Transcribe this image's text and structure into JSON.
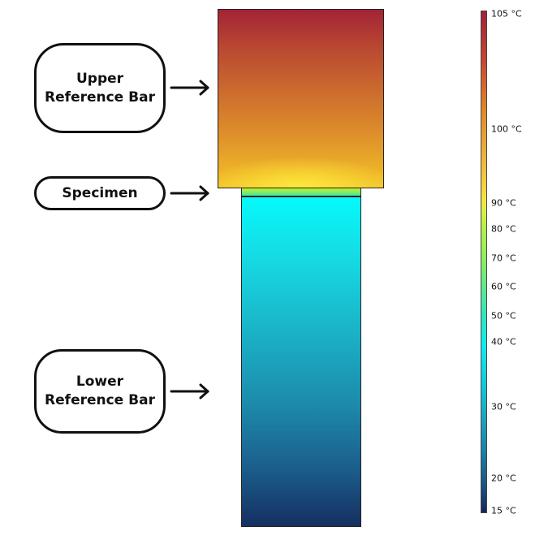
{
  "labels": {
    "upper": "Upper\nReference Bar",
    "specimen": "Specimen",
    "lower": "Lower\nReference Bar"
  },
  "colorbar": {
    "ticks": [
      "105 °C",
      "100 °C",
      "90 °C",
      "80 °C",
      "70 °C",
      "60 °C",
      "50 °C",
      "40 °C",
      "30 °C",
      "20 °C",
      "15 °C"
    ],
    "colors": {
      "hot": "#a32335",
      "warm": "#f2c52e",
      "mid": "#05f9fb",
      "cold": "#162f61"
    }
  }
}
